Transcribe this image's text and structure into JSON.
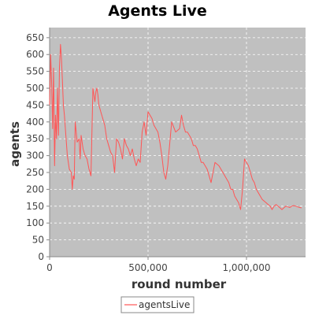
{
  "chart_data": {
    "type": "line",
    "title": "Agents Live",
    "xlabel": "round number",
    "ylabel": "agents",
    "xlim": [
      0,
      1300000
    ],
    "ylim": [
      0,
      680
    ],
    "x_ticks": [
      {
        "value": 0,
        "label": "0"
      },
      {
        "value": 500000,
        "label": "500,000"
      },
      {
        "value": 1000000,
        "label": "1,000,000"
      }
    ],
    "y_ticks": [
      {
        "value": 0,
        "label": "0"
      },
      {
        "value": 50,
        "label": "50"
      },
      {
        "value": 100,
        "label": "100"
      },
      {
        "value": 150,
        "label": "150"
      },
      {
        "value": 200,
        "label": "200"
      },
      {
        "value": 250,
        "label": "250"
      },
      {
        "value": 300,
        "label": "300"
      },
      {
        "value": 350,
        "label": "350"
      },
      {
        "value": 400,
        "label": "400"
      },
      {
        "value": 450,
        "label": "450"
      },
      {
        "value": 500,
        "label": "500"
      },
      {
        "value": 550,
        "label": "550"
      },
      {
        "value": 600,
        "label": "600"
      },
      {
        "value": 650,
        "label": "650"
      }
    ],
    "grid": true,
    "legend_position": "bottom-center",
    "colors": {
      "series": "#ff5555",
      "plot_background": "#c0c0c0",
      "grid": "#ffffff",
      "axis": "#888888"
    },
    "series": [
      {
        "name": "agentsLive",
        "x": [
          0,
          5000,
          10000,
          15000,
          20000,
          25000,
          30000,
          35000,
          40000,
          45000,
          50000,
          55000,
          60000,
          65000,
          70000,
          75000,
          80000,
          90000,
          100000,
          110000,
          115000,
          120000,
          125000,
          130000,
          135000,
          140000,
          150000,
          155000,
          160000,
          170000,
          180000,
          190000,
          200000,
          210000,
          220000,
          230000,
          235000,
          240000,
          245000,
          250000,
          255000,
          260000,
          270000,
          280000,
          290000,
          300000,
          310000,
          320000,
          330000,
          340000,
          350000,
          360000,
          370000,
          380000,
          390000,
          400000,
          410000,
          420000,
          430000,
          440000,
          450000,
          460000,
          470000,
          480000,
          490000,
          500000,
          510000,
          520000,
          530000,
          540000,
          550000,
          560000,
          570000,
          580000,
          590000,
          600000,
          620000,
          640000,
          660000,
          670000,
          680000,
          690000,
          700000,
          710000,
          720000,
          730000,
          740000,
          750000,
          760000,
          770000,
          780000,
          800000,
          820000,
          840000,
          860000,
          880000,
          900000,
          910000,
          920000,
          930000,
          940000,
          950000,
          960000,
          970000,
          980000,
          990000,
          1000000,
          1010000,
          1020000,
          1030000,
          1040000,
          1050000,
          1060000,
          1070000,
          1080000,
          1090000,
          1100000,
          1110000,
          1120000,
          1130000,
          1140000,
          1150000,
          1160000,
          1170000,
          1180000,
          1190000,
          1200000,
          1210000,
          1220000,
          1230000,
          1240000,
          1250000,
          1260000,
          1270000,
          1280000
        ],
        "values": [
          450,
          600,
          520,
          380,
          560,
          270,
          420,
          350,
          500,
          360,
          560,
          630,
          590,
          520,
          450,
          420,
          380,
          300,
          260,
          250,
          200,
          240,
          230,
          400,
          370,
          340,
          350,
          290,
          360,
          320,
          300,
          290,
          260,
          240,
          500,
          460,
          490,
          500,
          480,
          450,
          440,
          430,
          410,
          390,
          350,
          330,
          310,
          300,
          250,
          350,
          340,
          320,
          290,
          350,
          330,
          320,
          300,
          320,
          290,
          270,
          290,
          280,
          370,
          400,
          360,
          430,
          420,
          410,
          390,
          380,
          370,
          340,
          300,
          250,
          230,
          270,
          400,
          370,
          380,
          420,
          390,
          370,
          370,
          360,
          350,
          330,
          330,
          320,
          300,
          280,
          280,
          260,
          220,
          280,
          270,
          250,
          230,
          220,
          200,
          200,
          180,
          170,
          160,
          140,
          200,
          290,
          280,
          270,
          250,
          230,
          220,
          200,
          190,
          180,
          170,
          165,
          160,
          155,
          150,
          140,
          150,
          155,
          150,
          145,
          140,
          145,
          150,
          148,
          146,
          150,
          152,
          150,
          148,
          146,
          145
        ]
      }
    ]
  }
}
